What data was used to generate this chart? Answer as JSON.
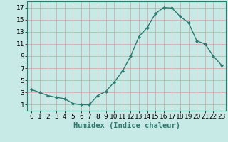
{
  "x": [
    0,
    1,
    2,
    3,
    4,
    5,
    6,
    7,
    8,
    9,
    10,
    11,
    12,
    13,
    14,
    15,
    16,
    17,
    18,
    19,
    20,
    21,
    22,
    23
  ],
  "y": [
    3.5,
    3.0,
    2.5,
    2.2,
    2.0,
    1.2,
    1.0,
    1.0,
    2.5,
    3.2,
    4.7,
    6.5,
    9.0,
    12.2,
    13.7,
    16.0,
    17.0,
    16.9,
    15.5,
    14.5,
    11.5,
    11.0,
    9.0,
    7.5
  ],
  "xlabel": "Humidex (Indice chaleur)",
  "bg_color": "#c8eae6",
  "line_color": "#2d7a6e",
  "marker_color": "#2d7a6e",
  "grid_color": "#d4a0a0",
  "xlim": [
    -0.5,
    23.5
  ],
  "ylim": [
    0,
    18
  ],
  "yticks": [
    1,
    3,
    5,
    7,
    9,
    11,
    13,
    15,
    17
  ],
  "xticks": [
    0,
    1,
    2,
    3,
    4,
    5,
    6,
    7,
    8,
    9,
    10,
    11,
    12,
    13,
    14,
    15,
    16,
    17,
    18,
    19,
    20,
    21,
    22,
    23
  ],
  "xlabel_fontsize": 7.5,
  "tick_fontsize": 6.5
}
